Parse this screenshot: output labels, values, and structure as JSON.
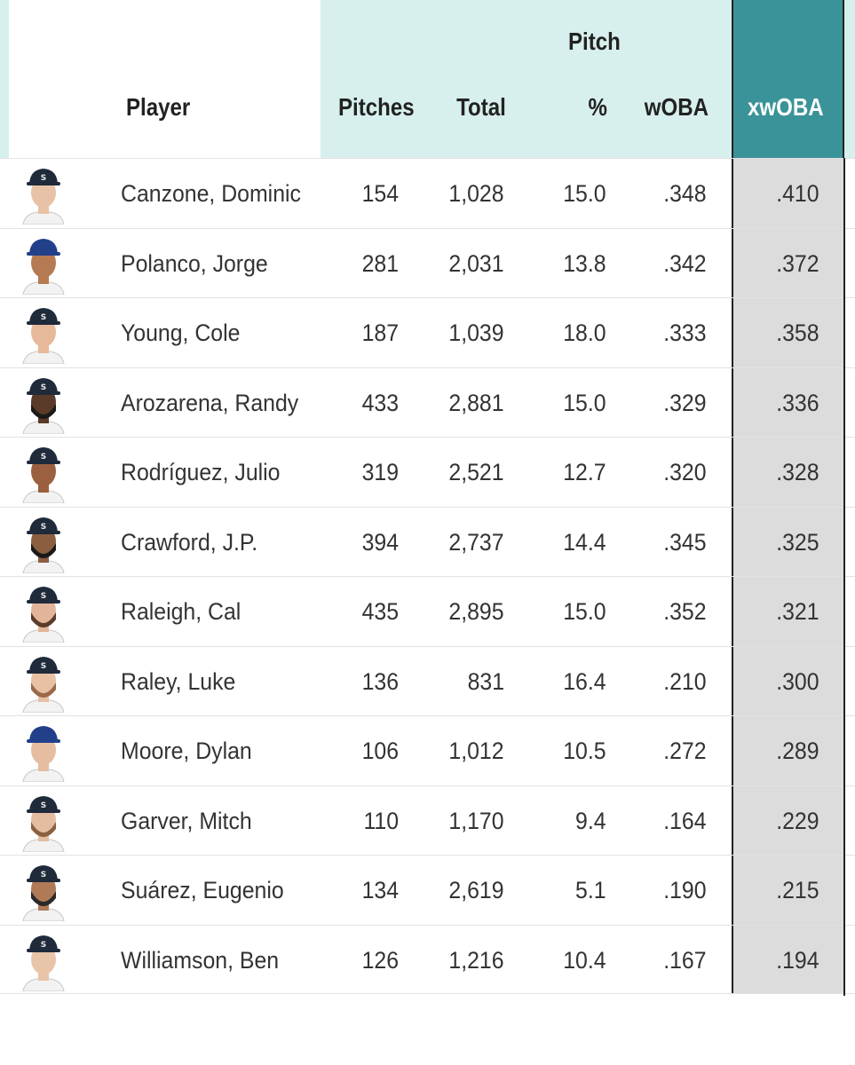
{
  "header": {
    "player": "Player",
    "pitches": "Pitches",
    "pitch_group": "Pitch",
    "total": "Total",
    "pct": "%",
    "woba": "wOBA",
    "xwoba": "xwOBA"
  },
  "colors": {
    "header_bg": "#d7efed",
    "xwoba_header_bg": "#3a9398",
    "xwoba_cell_bg": "#dcdcdc",
    "cap_seattle": "#1f2a3a",
    "cap_other": "#22408a"
  },
  "rows": [
    {
      "player": "Canzone, Dominic",
      "pitches": "154",
      "total": "1,028",
      "pct": "15.0",
      "woba": ".348",
      "xwoba": ".410",
      "cap": "#1f2a3a",
      "skin": "#e8c2a6",
      "beard": ""
    },
    {
      "player": "Polanco, Jorge",
      "pitches": "281",
      "total": "2,031",
      "pct": "13.8",
      "woba": ".342",
      "xwoba": ".372",
      "cap": "#22408a",
      "skin": "#b67a52",
      "beard": ""
    },
    {
      "player": "Young, Cole",
      "pitches": "187",
      "total": "1,039",
      "pct": "18.0",
      "woba": ".333",
      "xwoba": ".358",
      "cap": "#1f2a3a",
      "skin": "#e6b99a",
      "beard": ""
    },
    {
      "player": "Arozarena, Randy",
      "pitches": "433",
      "total": "2,881",
      "pct": "15.0",
      "woba": ".329",
      "xwoba": ".336",
      "cap": "#1f2a3a",
      "skin": "#5a3a28",
      "beard": "#1a1a1a"
    },
    {
      "player": "Rodríguez, Julio",
      "pitches": "319",
      "total": "2,521",
      "pct": "12.7",
      "woba": ".320",
      "xwoba": ".328",
      "cap": "#1f2a3a",
      "skin": "#9a6040",
      "beard": ""
    },
    {
      "player": "Crawford, J.P.",
      "pitches": "394",
      "total": "2,737",
      "pct": "14.4",
      "woba": ".345",
      "xwoba": ".325",
      "cap": "#1f2a3a",
      "skin": "#8c5e40",
      "beard": "#1a1a1a"
    },
    {
      "player": "Raleigh, Cal",
      "pitches": "435",
      "total": "2,895",
      "pct": "15.0",
      "woba": ".352",
      "xwoba": ".321",
      "cap": "#1f2a3a",
      "skin": "#e2b59a",
      "beard": "#5a3c28"
    },
    {
      "player": "Raley, Luke",
      "pitches": "136",
      "total": "831",
      "pct": "16.4",
      "woba": ".210",
      "xwoba": ".300",
      "cap": "#1f2a3a",
      "skin": "#e8c0a4",
      "beard": "#9a6a48"
    },
    {
      "player": "Moore, Dylan",
      "pitches": "106",
      "total": "1,012",
      "pct": "10.5",
      "woba": ".272",
      "xwoba": ".289",
      "cap": "#22408a",
      "skin": "#e6bda0",
      "beard": ""
    },
    {
      "player": "Garver, Mitch",
      "pitches": "110",
      "total": "1,170",
      "pct": "9.4",
      "woba": ".164",
      "xwoba": ".229",
      "cap": "#1f2a3a",
      "skin": "#e4bca0",
      "beard": "#8a6040"
    },
    {
      "player": "Suárez, Eugenio",
      "pitches": "134",
      "total": "2,619",
      "pct": "5.1",
      "woba": ".190",
      "xwoba": ".215",
      "cap": "#1f2a3a",
      "skin": "#b07a56",
      "beard": "#2a2a2a"
    },
    {
      "player": "Williamson, Ben",
      "pitches": "126",
      "total": "1,216",
      "pct": "10.4",
      "woba": ".167",
      "xwoba": ".194",
      "cap": "#1f2a3a",
      "skin": "#e8c4a8",
      "beard": ""
    }
  ]
}
